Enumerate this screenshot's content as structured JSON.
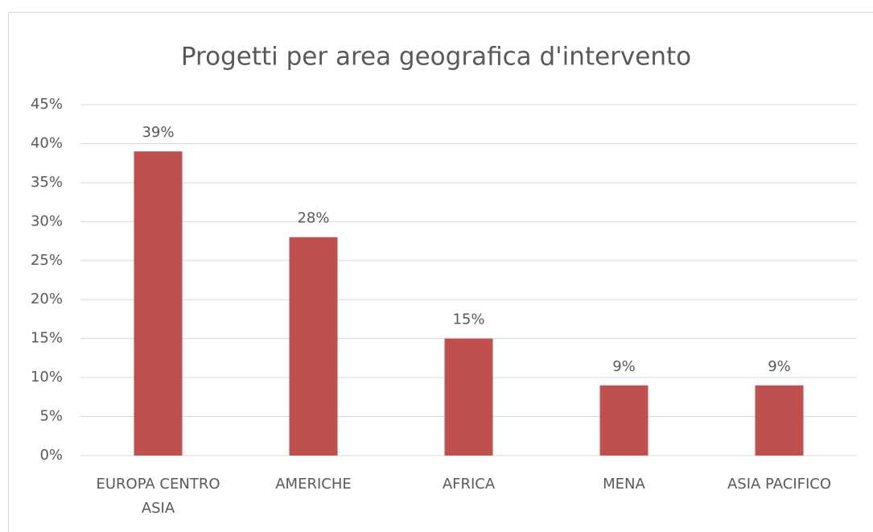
{
  "chart_data": {
    "type": "bar",
    "title": "Progetti per area geografica d'intervento",
    "categories": [
      "EUROPA CENTRO ASIA",
      "AMERICHE",
      "AFRICA",
      "MENA",
      "ASIA PACIFICO"
    ],
    "values": [
      39,
      28,
      15,
      9,
      9
    ],
    "value_labels": [
      "39%",
      "28%",
      "15%",
      "9%",
      "9%"
    ],
    "color": "#c0504d",
    "ylim": [
      0,
      45
    ],
    "yticks": [
      {
        "value": 0,
        "label": "0%"
      },
      {
        "value": 5,
        "label": "5%"
      },
      {
        "value": 10,
        "label": "10%"
      },
      {
        "value": 15,
        "label": "15%"
      },
      {
        "value": 20,
        "label": "20%"
      },
      {
        "value": 25,
        "label": "25%"
      },
      {
        "value": 30,
        "label": "30%"
      },
      {
        "value": 35,
        "label": "35%"
      },
      {
        "value": 40,
        "label": "40%"
      },
      {
        "value": 45,
        "label": "45%"
      }
    ],
    "grid": true
  }
}
